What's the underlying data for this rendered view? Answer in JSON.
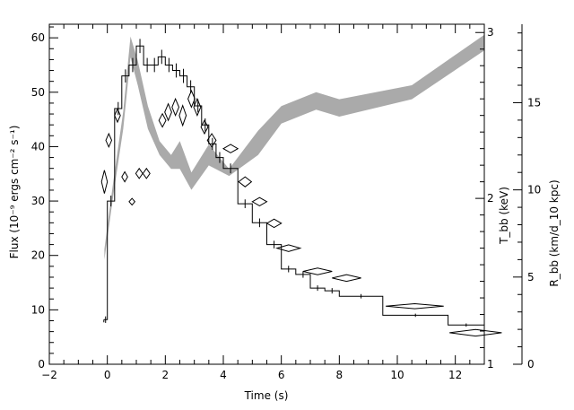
{
  "chart_data": {
    "type": "line",
    "xlabel": "Time (s)",
    "ylabel_left": "Flux (10⁻⁹ ergs cm⁻² s⁻¹)",
    "ylabel_mid": "T_bb (keV)",
    "ylabel_right": "R_bb (km/d_10 kpc)",
    "xlim": [
      -2,
      13
    ],
    "ylim_left": [
      0,
      62.5
    ],
    "ylim_mid": [
      1,
      3.05
    ],
    "ylim_right": [
      0,
      19.5
    ],
    "x_ticks": [
      -2,
      0,
      2,
      4,
      6,
      8,
      10,
      12
    ],
    "x_tick_labels": [
      "−2",
      "0",
      "2",
      "4",
      "6",
      "8",
      "10",
      "12"
    ],
    "y_left_ticks": [
      0,
      10,
      20,
      30,
      40,
      50,
      60
    ],
    "y_left_tick_labels": [
      "0",
      "10",
      "20",
      "30",
      "40",
      "50",
      "60"
    ],
    "y_mid_ticks": [
      1,
      2,
      3
    ],
    "y_mid_tick_labels": [
      "1",
      "2",
      "3"
    ],
    "y_right_ticks": [
      0,
      5,
      10,
      15
    ],
    "y_right_tick_labels": [
      "0",
      "5",
      "10",
      "15"
    ],
    "colors": {
      "band": "#aaaaaa",
      "line": "#000000"
    },
    "flux_series": {
      "style": "histogram with error bars",
      "steps": [
        [
          -0.12,
          0.0,
          8.2,
          0.6
        ],
        [
          0.0,
          0.25,
          30,
          1.0
        ],
        [
          0.25,
          0.5,
          47,
          1.2
        ],
        [
          0.5,
          0.75,
          53,
          1.2
        ],
        [
          0.75,
          1.0,
          55,
          1.3
        ],
        [
          1.0,
          1.25,
          58.5,
          1.3
        ],
        [
          1.25,
          1.5,
          55,
          1.3
        ],
        [
          1.5,
          1.75,
          55,
          1.3
        ],
        [
          1.75,
          2.0,
          56.5,
          1.3
        ],
        [
          2.0,
          2.25,
          55,
          1.3
        ],
        [
          2.25,
          2.5,
          54,
          1.3
        ],
        [
          2.5,
          2.75,
          53,
          1.3
        ],
        [
          2.75,
          3.0,
          51,
          1.2
        ],
        [
          3.0,
          3.25,
          47.5,
          1.2
        ],
        [
          3.25,
          3.5,
          44,
          1.2
        ],
        [
          3.5,
          3.75,
          40.5,
          1.1
        ],
        [
          3.75,
          4.0,
          38,
          1.0
        ],
        [
          4.0,
          4.5,
          36,
          0.9
        ],
        [
          4.5,
          5.0,
          29.5,
          0.8
        ],
        [
          5.0,
          5.5,
          26,
          0.8
        ],
        [
          5.5,
          6.0,
          22,
          0.7
        ],
        [
          6.0,
          6.5,
          17.5,
          0.6
        ],
        [
          6.5,
          7.0,
          16.5,
          0.6
        ],
        [
          7.0,
          7.5,
          14,
          0.5
        ],
        [
          7.5,
          8.0,
          13.5,
          0.5
        ],
        [
          8.0,
          9.5,
          12.5,
          0.4
        ],
        [
          9.5,
          11.75,
          9,
          0.3
        ],
        [
          11.75,
          13.0,
          7.2,
          0.3
        ]
      ]
    },
    "temperature_series": {
      "style": "diamonds (x half-width, y half-height in keV)",
      "points": [
        [
          -0.1,
          2.1,
          0.1,
          0.07
        ],
        [
          0.05,
          2.35,
          0.1,
          0.04
        ],
        [
          0.35,
          2.5,
          0.1,
          0.04
        ],
        [
          0.6,
          2.13,
          0.1,
          0.03
        ],
        [
          0.85,
          1.98,
          0.1,
          0.02
        ],
        [
          1.1,
          2.15,
          0.12,
          0.03
        ],
        [
          1.35,
          2.15,
          0.12,
          0.03
        ],
        [
          1.9,
          2.47,
          0.12,
          0.04
        ],
        [
          2.1,
          2.52,
          0.12,
          0.05
        ],
        [
          2.35,
          2.55,
          0.12,
          0.05
        ],
        [
          2.6,
          2.5,
          0.12,
          0.06
        ],
        [
          2.9,
          2.6,
          0.12,
          0.05
        ],
        [
          3.1,
          2.55,
          0.12,
          0.05
        ],
        [
          3.35,
          2.43,
          0.12,
          0.04
        ],
        [
          3.6,
          2.35,
          0.15,
          0.04
        ],
        [
          4.25,
          2.3,
          0.25,
          0.025
        ],
        [
          4.75,
          2.1,
          0.22,
          0.03
        ],
        [
          5.25,
          1.98,
          0.25,
          0.025
        ],
        [
          5.75,
          1.85,
          0.25,
          0.025
        ],
        [
          6.25,
          1.7,
          0.4,
          0.02
        ],
        [
          7.25,
          1.56,
          0.5,
          0.02
        ],
        [
          8.25,
          1.52,
          0.5,
          0.02
        ],
        [
          10.6,
          1.35,
          1.0,
          0.015
        ],
        [
          12.7,
          1.19,
          0.9,
          0.02
        ]
      ]
    },
    "radius_band": {
      "style": "grey band",
      "lower": [
        [
          -0.1,
          6.0
        ],
        [
          0.2,
          9.6
        ],
        [
          0.55,
          13.5
        ],
        [
          0.8,
          17.6
        ],
        [
          1.05,
          16.0
        ],
        [
          1.4,
          13.5
        ],
        [
          1.8,
          12.0
        ],
        [
          2.2,
          11.2
        ],
        [
          2.5,
          11.2
        ],
        [
          2.9,
          10.0
        ],
        [
          3.5,
          11.4
        ],
        [
          4.2,
          10.8
        ],
        [
          5.2,
          12.0
        ],
        [
          6.0,
          13.8
        ],
        [
          7.2,
          14.6
        ],
        [
          8.0,
          14.2
        ],
        [
          10.5,
          15.2
        ],
        [
          13.0,
          18.0
        ]
      ],
      "upper": [
        [
          -0.1,
          6.6
        ],
        [
          0.2,
          10.4
        ],
        [
          0.55,
          14.5
        ],
        [
          0.8,
          18.8
        ],
        [
          1.05,
          17.4
        ],
        [
          1.4,
          14.8
        ],
        [
          1.8,
          12.8
        ],
        [
          2.2,
          12.0
        ],
        [
          2.5,
          12.8
        ],
        [
          2.9,
          11.0
        ],
        [
          3.5,
          12.6
        ],
        [
          4.2,
          11.2
        ],
        [
          5.2,
          13.4
        ],
        [
          6.0,
          14.8
        ],
        [
          7.2,
          15.6
        ],
        [
          8.0,
          15.2
        ],
        [
          10.5,
          16.0
        ],
        [
          13.0,
          18.9
        ]
      ]
    }
  }
}
